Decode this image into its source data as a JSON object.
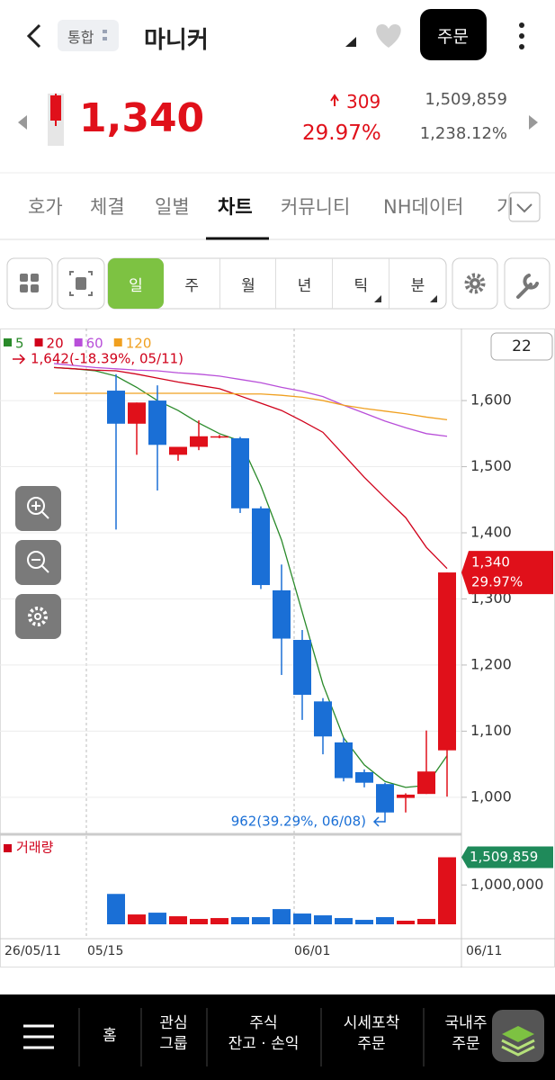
{
  "header": {
    "market": "통합",
    "title": "마니커",
    "order_button": "주문"
  },
  "quote": {
    "price": "1,340",
    "change": "309",
    "change_rate": "29.97%",
    "volume": "1,509,859",
    "volume_rate": "1,238.12%"
  },
  "tabs": [
    "호가",
    "체결",
    "일별",
    "차트",
    "커뮤니티",
    "NH데이터",
    "기"
  ],
  "periods": [
    "일",
    "주",
    "월",
    "년",
    "틱",
    "분"
  ],
  "chart_data": {
    "type": "candlestick",
    "period_count": "22",
    "categories": [
      null,
      null,
      null,
      null,
      null,
      null,
      null,
      null,
      null,
      null,
      null,
      null,
      null,
      null,
      null,
      null,
      null,
      null,
      null,
      null
    ],
    "open": [
      null,
      null,
      null,
      1615,
      1565,
      1600,
      1518,
      1530,
      1545,
      1543,
      1437,
      1313,
      1238,
      1145,
      1083,
      1038,
      1020,
      999,
      1005,
      1071
    ],
    "high": [
      null,
      null,
      null,
      1640,
      1597,
      1623,
      1530,
      1570,
      1548,
      1545,
      1440,
      1352,
      1253,
      1150,
      1090,
      1042,
      1022,
      1006,
      1101,
      1340
    ],
    "low": [
      null,
      null,
      null,
      1405,
      1518,
      1464,
      1509,
      1525,
      1543,
      1430,
      1315,
      1185,
      1117,
      1065,
      1024,
      1015,
      962,
      977,
      1005,
      1001
    ],
    "close": [
      null,
      null,
      null,
      1565,
      1597,
      1533,
      1530,
      1546,
      1546,
      1437,
      1321,
      1240,
      1155,
      1092,
      1029,
      1022,
      977,
      1004,
      1039,
      1340
    ],
    "up_color": "#e0101a",
    "down_color": "#1a6fd6",
    "series": [
      {
        "name": "5",
        "color": "#2a8a2a",
        "values": [
          1650,
          1648,
          1645,
          1637,
          1620,
          1600,
          1585,
          1566,
          1550,
          1539,
          1471,
          1389,
          1280,
          1171,
          1090,
          1049,
          1024,
          1015,
          1018,
          1063
        ]
      },
      {
        "name": "20",
        "color": "#d0021b",
        "values": [
          1650,
          1648,
          1646,
          1645,
          1640,
          1634,
          1628,
          1623,
          1618,
          1607,
          1596,
          1585,
          1569,
          1552,
          1518,
          1484,
          1453,
          1423,
          1378,
          1346
        ]
      },
      {
        "name": "60",
        "color": "#b84fd9",
        "values": [
          1656,
          1653,
          1650,
          1648,
          1646,
          1645,
          1642,
          1640,
          1637,
          1632,
          1627,
          1620,
          1614,
          1606,
          1593,
          1581,
          1569,
          1559,
          1550,
          1546
        ]
      },
      {
        "name": "120",
        "color": "#f0a020",
        "values": [
          1611,
          1611,
          1611,
          1611,
          1611,
          1611,
          1611,
          1611,
          1611,
          1610,
          1610,
          1608,
          1605,
          1600,
          1593,
          1588,
          1584,
          1580,
          1575,
          1571
        ]
      }
    ],
    "ylim": [
      944,
      1709
    ],
    "yticks": [
      {
        "value": 1000,
        "label": "1,000"
      },
      {
        "value": 1100,
        "label": "1,100"
      },
      {
        "value": 1200,
        "label": "1,200"
      },
      {
        "value": 1300,
        "label": "1,300"
      },
      {
        "value": 1400,
        "label": "1,400"
      },
      {
        "value": 1500,
        "label": "1,500"
      },
      {
        "value": 1600,
        "label": "1,600"
      }
    ],
    "grid": true,
    "annotations": {
      "high": "1,642(-18.39%, 05/11)",
      "low": "962(39.29%, 06/08)"
    },
    "x_labels": [
      "26/05/11",
      "05/15",
      "06/01",
      "06/11"
    ],
    "volume": {
      "name": "거래량",
      "color": "#d0021b",
      "tag_color": "#1f8a5a",
      "values": [
        null,
        null,
        null,
        835000,
        457000,
        490000,
        424000,
        375000,
        391000,
        408000,
        408000,
        556000,
        474000,
        441000,
        391000,
        358000,
        408000,
        342000,
        375000,
        1509859
      ],
      "ylim": [
        276000,
        1800000
      ],
      "yticks": [
        {
          "value": 1000000,
          "label": "1,000,000"
        }
      ]
    }
  },
  "bottom_nav": [
    [
      "홈"
    ],
    [
      "관심",
      "그룹"
    ],
    [
      "주식",
      "잔고 · 손익"
    ],
    [
      "시세포착",
      "주문"
    ],
    [
      "국내주",
      "주문"
    ]
  ]
}
